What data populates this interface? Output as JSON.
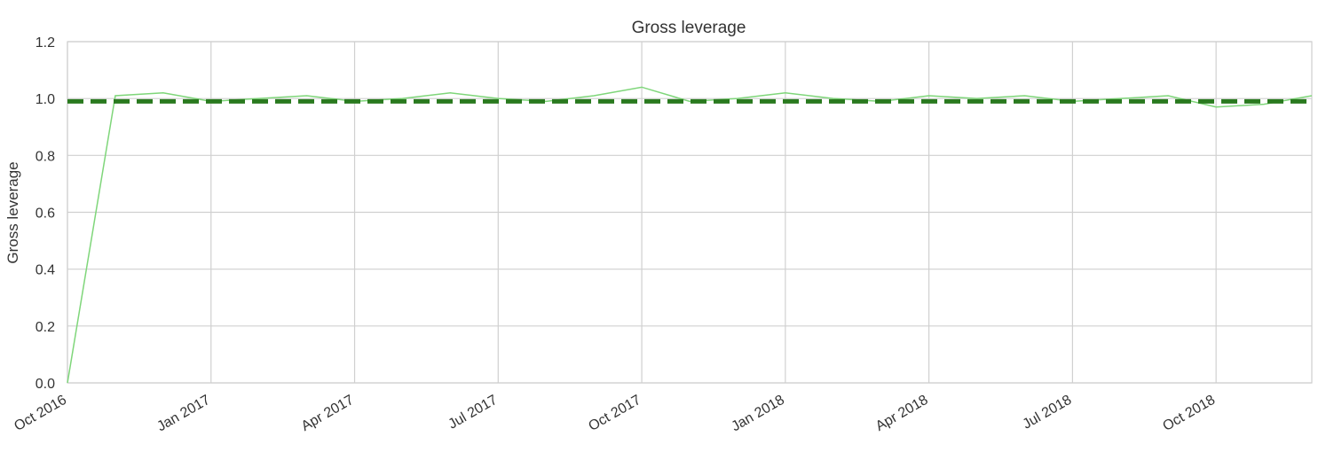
{
  "chart_data": {
    "type": "line",
    "title": "Gross leverage",
    "ylabel": "Gross leverage",
    "x": [
      "2016-10",
      "2016-11",
      "2016-12",
      "2017-01",
      "2017-02",
      "2017-03",
      "2017-04",
      "2017-05",
      "2017-06",
      "2017-07",
      "2017-08",
      "2017-09",
      "2017-10",
      "2017-11",
      "2017-12",
      "2018-01",
      "2018-02",
      "2018-03",
      "2018-04",
      "2018-05",
      "2018-06",
      "2018-07",
      "2018-08",
      "2018-09",
      "2018-10",
      "2018-11",
      "2018-12"
    ],
    "values": [
      0.0,
      1.01,
      1.02,
      0.99,
      1.0,
      1.01,
      0.99,
      1.0,
      1.02,
      1.0,
      0.99,
      1.01,
      1.04,
      0.99,
      1.0,
      1.02,
      1.0,
      0.99,
      1.01,
      1.0,
      1.01,
      0.99,
      1.0,
      1.01,
      0.97,
      0.98,
      1.01
    ],
    "color": "#7fd67a",
    "hline": {
      "value": 0.99,
      "color": "#2a7a1f"
    },
    "xlim": [
      "2016-10",
      "2018-12"
    ],
    "xticks": [
      {
        "value": "2016-10",
        "label": "Oct 2016"
      },
      {
        "value": "2017-01",
        "label": "Jan 2017"
      },
      {
        "value": "2017-04",
        "label": "Apr 2017"
      },
      {
        "value": "2017-07",
        "label": "Jul 2017"
      },
      {
        "value": "2017-10",
        "label": "Oct 2017"
      },
      {
        "value": "2018-01",
        "label": "Jan 2018"
      },
      {
        "value": "2018-04",
        "label": "Apr 2018"
      },
      {
        "value": "2018-07",
        "label": "Jul 2018"
      },
      {
        "value": "2018-10",
        "label": "Oct 2018"
      }
    ],
    "ylim": [
      0,
      1.2
    ],
    "yticks": [
      {
        "value": 0,
        "label": "0.0"
      },
      0.2,
      0.4,
      0.6,
      0.8,
      {
        "value": 1,
        "label": "1.0"
      },
      1.2
    ],
    "grid": true
  }
}
